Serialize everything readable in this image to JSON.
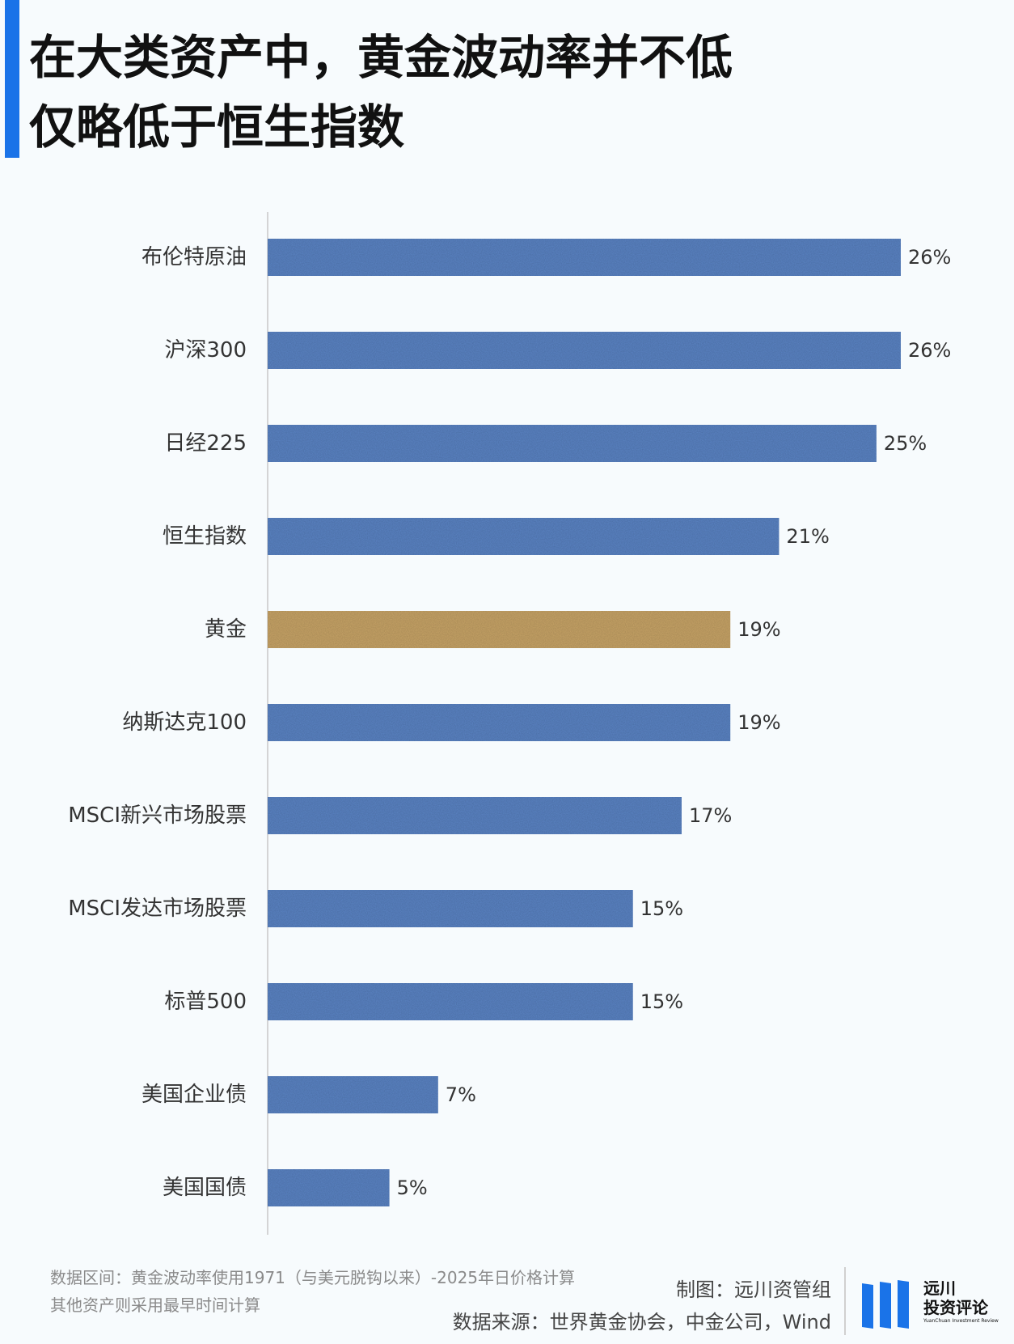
{
  "title": {
    "line1": "在大类资产中，黄金波动率并不低",
    "line2": "仅略低于恒生指数"
  },
  "colors": {
    "accent": "#1a73e8",
    "bar": "#5b84c4",
    "highlight_bar": "#c8a468",
    "axis": "#c8c8c8"
  },
  "chart_data": {
    "type": "bar",
    "orientation": "horizontal",
    "categories": [
      "布伦特原油",
      "沪深300",
      "日经225",
      "恒生指数",
      "黄金",
      "纳斯达克100",
      "MSCI新兴市场股票",
      "MSCI发达市场股票",
      "标普500",
      "美国企业债",
      "美国国债"
    ],
    "values": [
      26,
      26,
      25,
      21,
      19,
      19,
      17,
      15,
      15,
      7,
      5
    ],
    "data_labels": [
      "26%",
      "26%",
      "25%",
      "21%",
      "19%",
      "19%",
      "17%",
      "15%",
      "15%",
      "7%",
      "5%"
    ],
    "highlight": "黄金",
    "xlim": [
      0,
      26
    ],
    "grid": false,
    "legend": "none"
  },
  "notes": {
    "line1": "数据区间：黄金波动率使用1971（与美元脱钩以来）-2025年日价格计算",
    "line2": "其他资产则采用最早时间计算"
  },
  "credits": {
    "made_by": "制图：远川资管组",
    "source": "数据来源：世界黄金协会，中金公司，Wind"
  },
  "logo": {
    "line1": "远川",
    "line2": "投资评论",
    "line3": "YuanChuan Investment Review"
  }
}
